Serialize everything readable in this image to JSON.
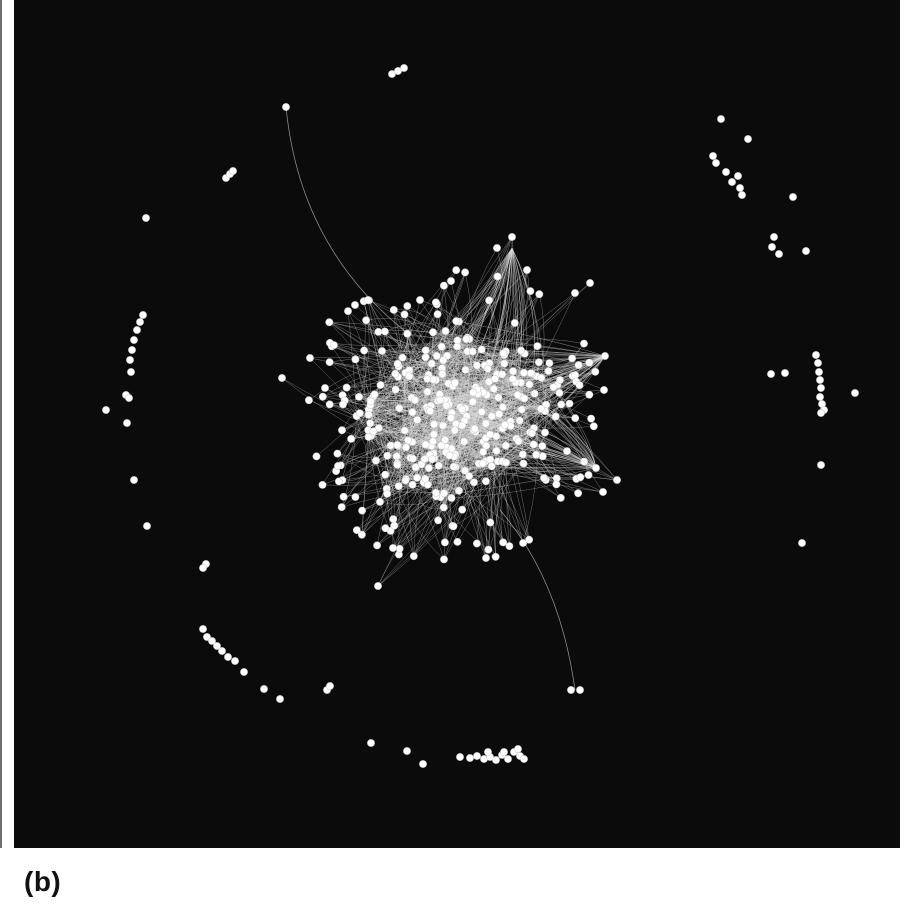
{
  "figure": {
    "panel_label": "(b)"
  },
  "colors": {
    "background": "#0b0b0b",
    "node_fill": "#ffffff",
    "node_stroke": "#cfcfcf",
    "edge": "#d8d8d8"
  }
}
